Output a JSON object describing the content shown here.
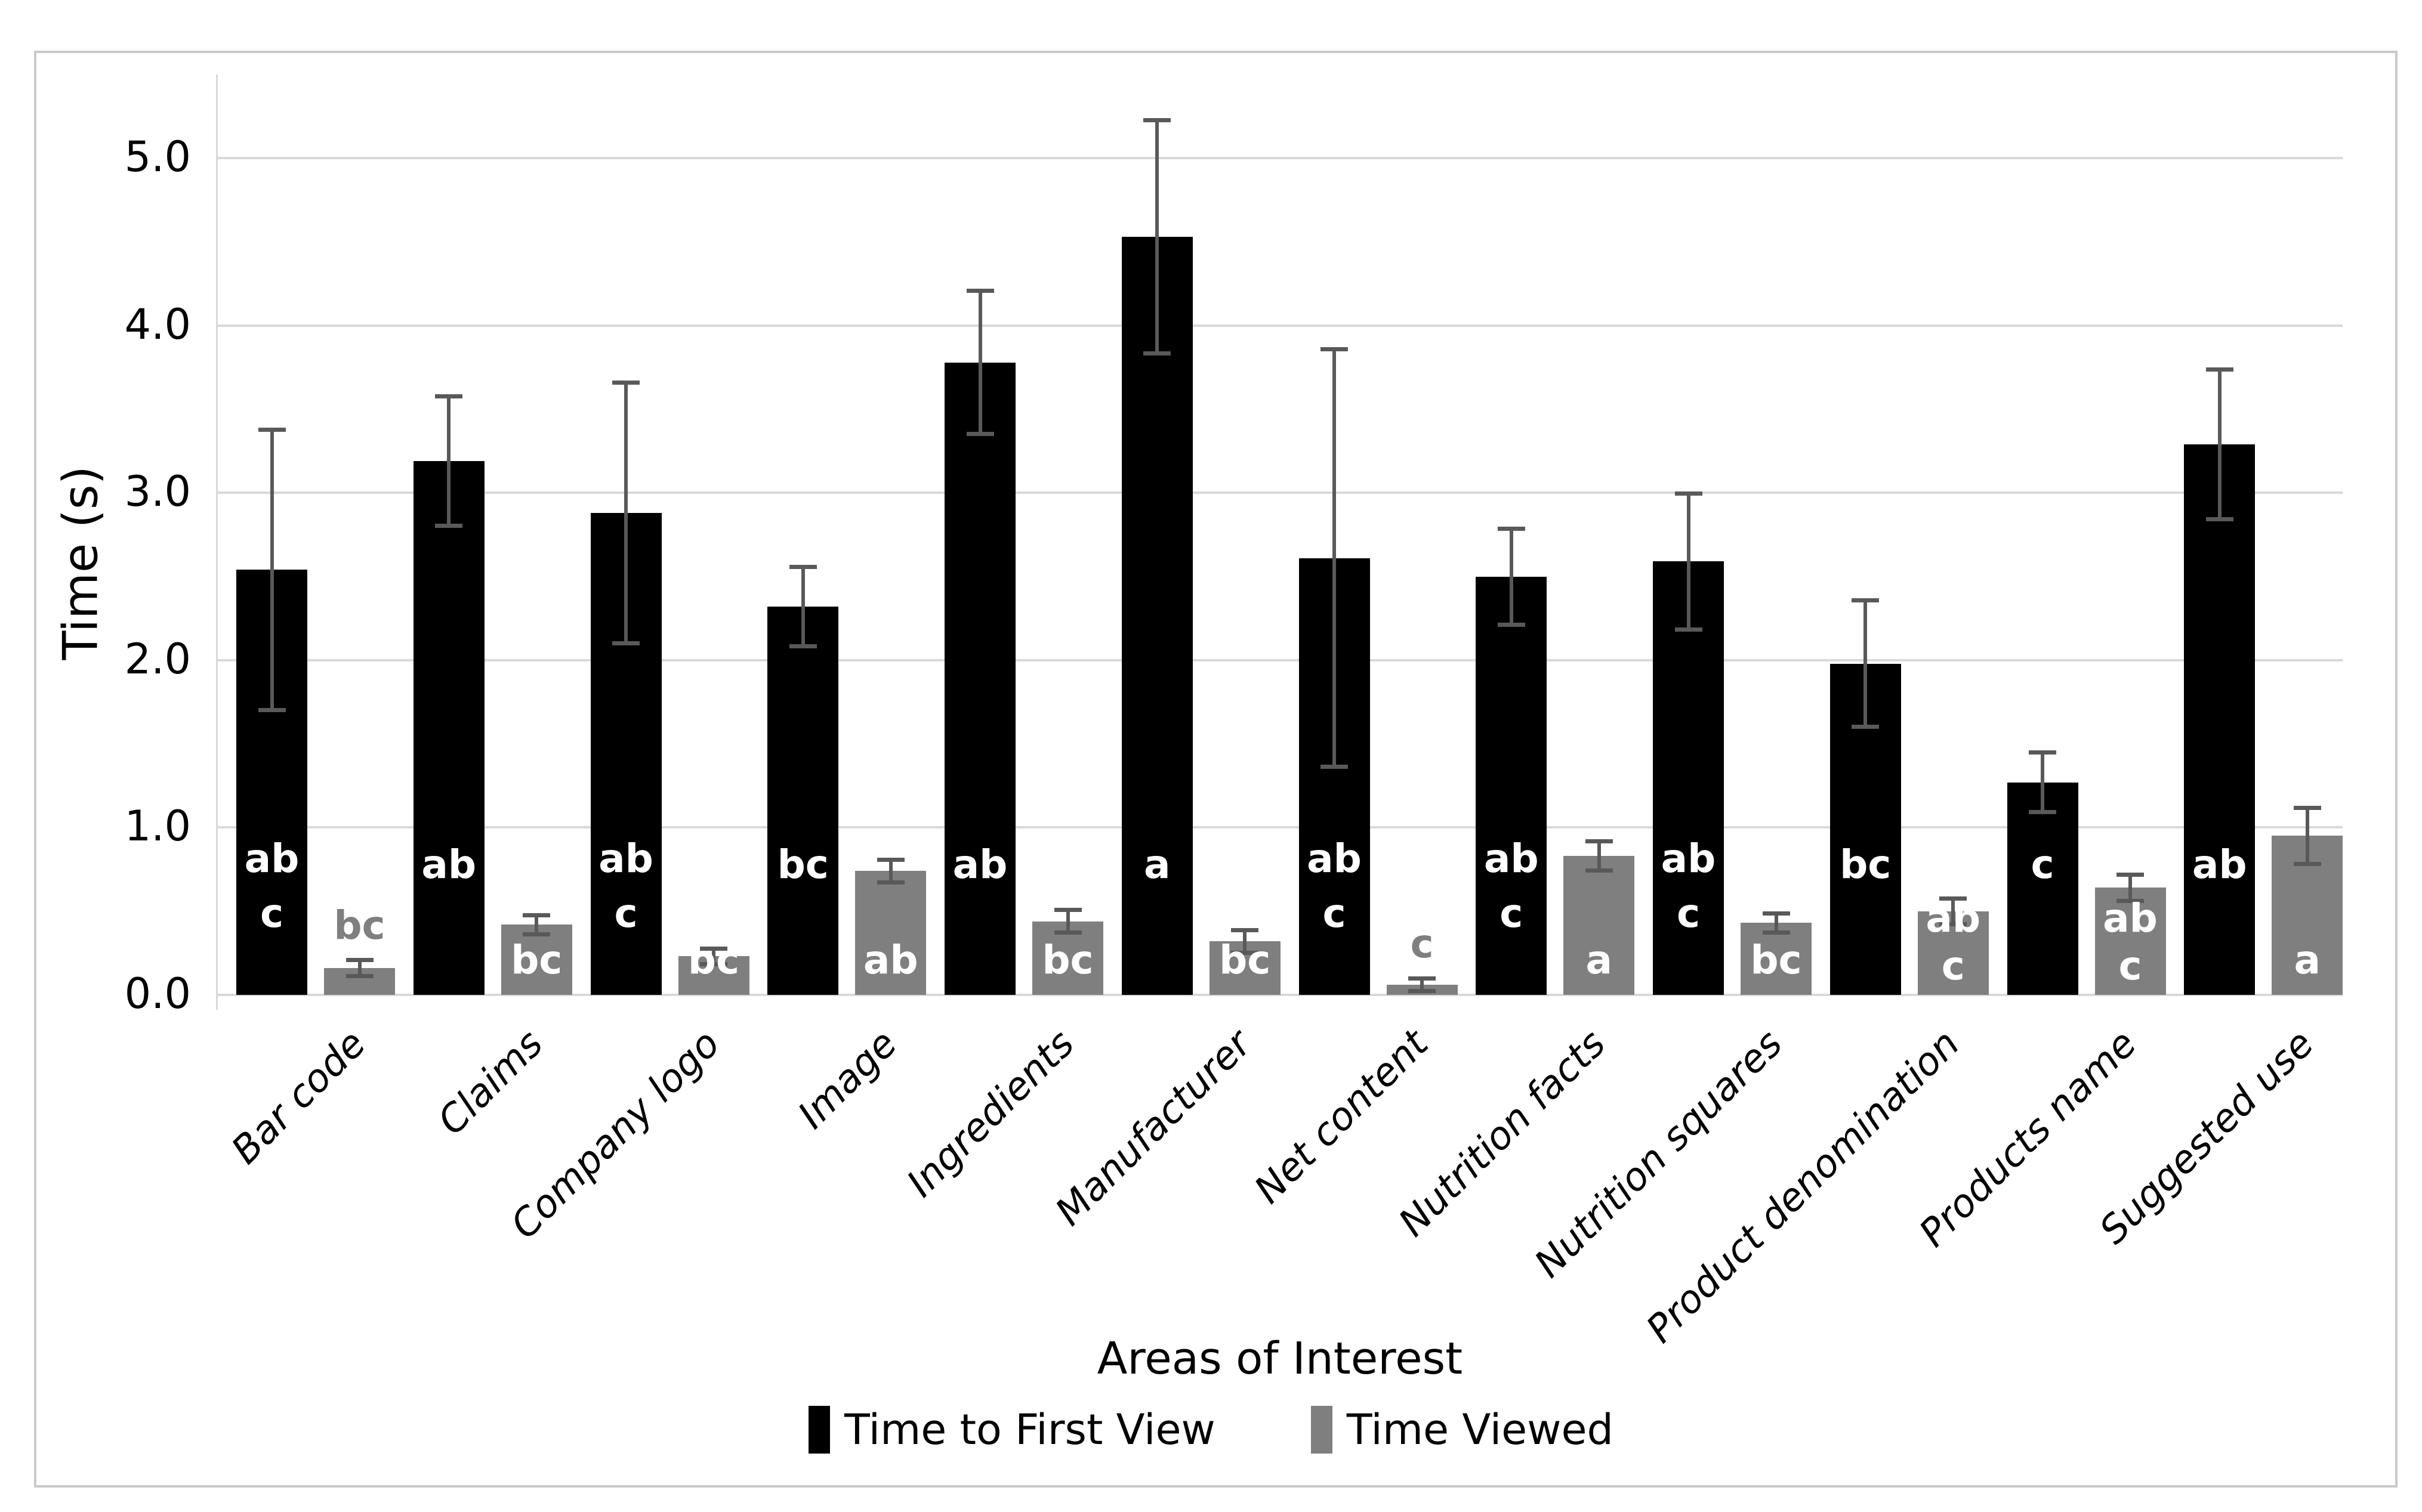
{
  "chart_data": {
    "type": "bar",
    "title": "",
    "xlabel": "Areas of Interest",
    "ylabel": "Time (s)",
    "ylim": [
      0,
      5.5
    ],
    "grid": true,
    "legend_position": "bottom",
    "yticks": [
      {
        "label": "0.0",
        "value": 0
      },
      {
        "label": "1.0",
        "value": 1
      },
      {
        "label": "2.0",
        "value": 2
      },
      {
        "label": "3.0",
        "value": 3
      },
      {
        "label": "4.0",
        "value": 4
      },
      {
        "label": "5.0",
        "value": 5
      }
    ],
    "categories": [
      "Bar code",
      "Claims",
      "Company logo",
      "Image",
      "Ingredients",
      "Manufacturer",
      "Net content",
      "Nutrition facts",
      "Nutrition squares",
      "Product denomination",
      "Products name",
      "Suggested use"
    ],
    "series": [
      {
        "name": "Time to First View",
        "color": "#000000",
        "values": [
          2.54,
          3.19,
          2.88,
          2.32,
          3.78,
          4.53,
          2.61,
          2.5,
          2.59,
          1.98,
          1.27,
          3.29
        ],
        "errors": [
          0.85,
          0.4,
          0.79,
          0.25,
          0.44,
          0.71,
          1.26,
          0.3,
          0.42,
          0.39,
          0.19,
          0.46
        ],
        "letters": [
          "ab c",
          "ab",
          "ab c",
          "bc",
          "ab",
          "a",
          "ab c",
          "ab c",
          "ab c",
          "bc",
          "c",
          "ab"
        ],
        "letters_outside": [
          false,
          false,
          false,
          false,
          false,
          false,
          false,
          false,
          false,
          false,
          false,
          false
        ]
      },
      {
        "name": "Time Viewed",
        "color": "#7F7F7F",
        "values": [
          0.16,
          0.42,
          0.23,
          0.74,
          0.44,
          0.32,
          0.06,
          0.83,
          0.43,
          0.5,
          0.64,
          0.95
        ],
        "errors": [
          0.06,
          0.07,
          0.06,
          0.08,
          0.08,
          0.08,
          0.05,
          0.1,
          0.07,
          0.09,
          0.09,
          0.18
        ],
        "letters": [
          "bc",
          "bc",
          "bc",
          "ab",
          "bc",
          "bc",
          "c",
          "a",
          "bc",
          "ab c",
          "ab c",
          "a"
        ],
        "letters_outside": [
          true,
          false,
          false,
          false,
          false,
          false,
          true,
          false,
          false,
          false,
          false,
          false
        ]
      }
    ],
    "error_bar_color": "#595959",
    "gridline_color": "#D9D9D9",
    "frame_color": "#C9C9C9"
  },
  "legend": {
    "items": [
      {
        "label": "Time to First View",
        "color": "#000000"
      },
      {
        "label": "Time Viewed",
        "color": "#7F7F7F"
      }
    ]
  }
}
